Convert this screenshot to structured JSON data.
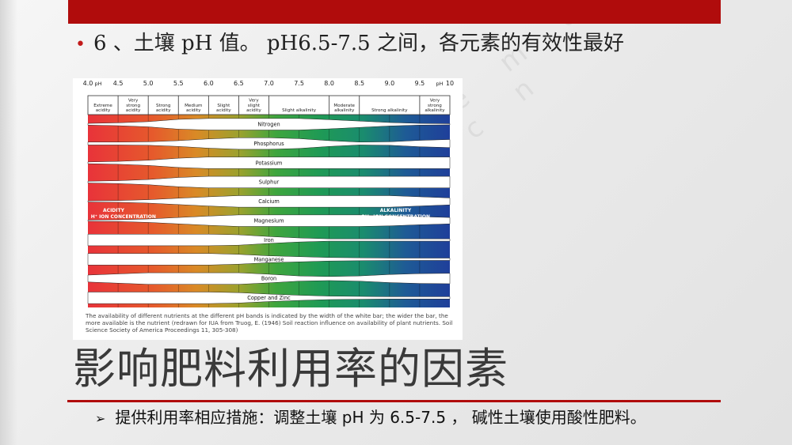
{
  "slide": {
    "bullet_text": "6 、土壤 pH 值。 pH6.5-7.5 之间，各元素的有效性最好",
    "title": "影响肥料利用率的因素",
    "subpoint": "提供利用率相应措施：调整土壤 pH 为 6.5-7.5 ， 碱性土壤使用酸性肥料。"
  },
  "colors": {
    "accent_red": "#b00c0c",
    "title_gray": "#3a3a3a"
  },
  "watermark_text": "z e m u . c n",
  "diagram": {
    "ph_ticks": [
      "4.0",
      "4.5",
      "5.0",
      "5.5",
      "6.0",
      "6.5",
      "7.0",
      "7.5",
      "8.0",
      "8.5",
      "9.0",
      "9.5",
      "10"
    ],
    "ph_unit_label": "pH",
    "acidity_classes": [
      {
        "label": "Extreme\nacidity",
        "from": 4.0,
        "to": 4.5
      },
      {
        "label": "Very\nstrong\nacidity",
        "from": 4.5,
        "to": 5.0
      },
      {
        "label": "Strong\nacidity",
        "from": 5.0,
        "to": 5.5
      },
      {
        "label": "Medium\nacidity",
        "from": 5.5,
        "to": 6.0
      },
      {
        "label": "Slight\nacidity",
        "from": 6.0,
        "to": 6.5
      },
      {
        "label": "Very\nslight\nacidity",
        "from": 6.5,
        "to": 7.0
      },
      {
        "label": "Slight alkalinity",
        "from": 7.0,
        "to": 8.0
      },
      {
        "label": "Moderate\nalkalinity",
        "from": 8.0,
        "to": 8.5
      },
      {
        "label": "Strong alkalinity",
        "from": 8.5,
        "to": 9.5
      },
      {
        "label": "Very\nstrong\nalkalinity",
        "from": 9.5,
        "to": 10.0
      }
    ],
    "nutrients": [
      {
        "name": "Nitrogen",
        "width": [
          0.15,
          0.25,
          0.45,
          0.85,
          1,
          1,
          1,
          1,
          0.8,
          0.55,
          0.3,
          0.15,
          0.1
        ]
      },
      {
        "name": "Phosphorus",
        "width": [
          0.25,
          0.25,
          0.3,
          0.5,
          0.8,
          1,
          1,
          0.85,
          0.5,
          0.25,
          0.3,
          0.55,
          0.7
        ]
      },
      {
        "name": "Potassium",
        "width": [
          0.15,
          0.25,
          0.45,
          0.8,
          1,
          1,
          1,
          1,
          1,
          1,
          1,
          1,
          1
        ]
      },
      {
        "name": "Sulphur",
        "width": [
          0.15,
          0.25,
          0.45,
          0.8,
          1,
          1,
          1,
          1,
          1,
          1,
          1,
          1,
          1
        ]
      },
      {
        "name": "Calcium",
        "width": [
          0.1,
          0.15,
          0.3,
          0.55,
          0.8,
          1,
          1,
          1,
          1,
          1,
          1,
          0.8,
          0.6
        ]
      },
      {
        "name": "Magnesium",
        "width": [
          0.1,
          0.15,
          0.3,
          0.55,
          0.8,
          1,
          1,
          1,
          1,
          1,
          0.9,
          0.7,
          0.55
        ]
      },
      {
        "name": "Iron",
        "width": [
          1,
          1,
          1,
          1,
          1,
          0.9,
          0.6,
          0.35,
          0.2,
          0.2,
          0.2,
          0.2,
          0.2
        ]
      },
      {
        "name": "Manganese",
        "width": [
          1,
          1,
          1,
          1,
          1,
          0.85,
          0.6,
          0.45,
          0.3,
          0.25,
          0.2,
          0.2,
          0.2
        ]
      },
      {
        "name": "Boron",
        "width": [
          0.6,
          0.8,
          1,
          1,
          1,
          1,
          0.75,
          0.45,
          0.35,
          0.45,
          0.7,
          0.85,
          0.9
        ]
      },
      {
        "name": "Copper and Zinc",
        "width": [
          1,
          1,
          1,
          1,
          1,
          0.9,
          0.65,
          0.45,
          0.3,
          0.25,
          0.2,
          0.2,
          0.2
        ]
      }
    ],
    "acidity_zone_label": "ACIDITY",
    "acidity_zone_sublabel": "H⁺ ION CONCENTRATION",
    "alkalinity_zone_label": "ALKALINITY",
    "alkalinity_zone_sublabel": "OH⁻ ION CONCENTRATION",
    "caption": "The availability of different nutrients at the different pH bands is indicated by the width of the white bar; the wider the bar, the more available is the nutrient (redrawn for IUA from Truog, E. (1946) Soil reaction influence on availability of plant nutrients. Soil Science Society of America Proceedings 11, 305-308)"
  }
}
